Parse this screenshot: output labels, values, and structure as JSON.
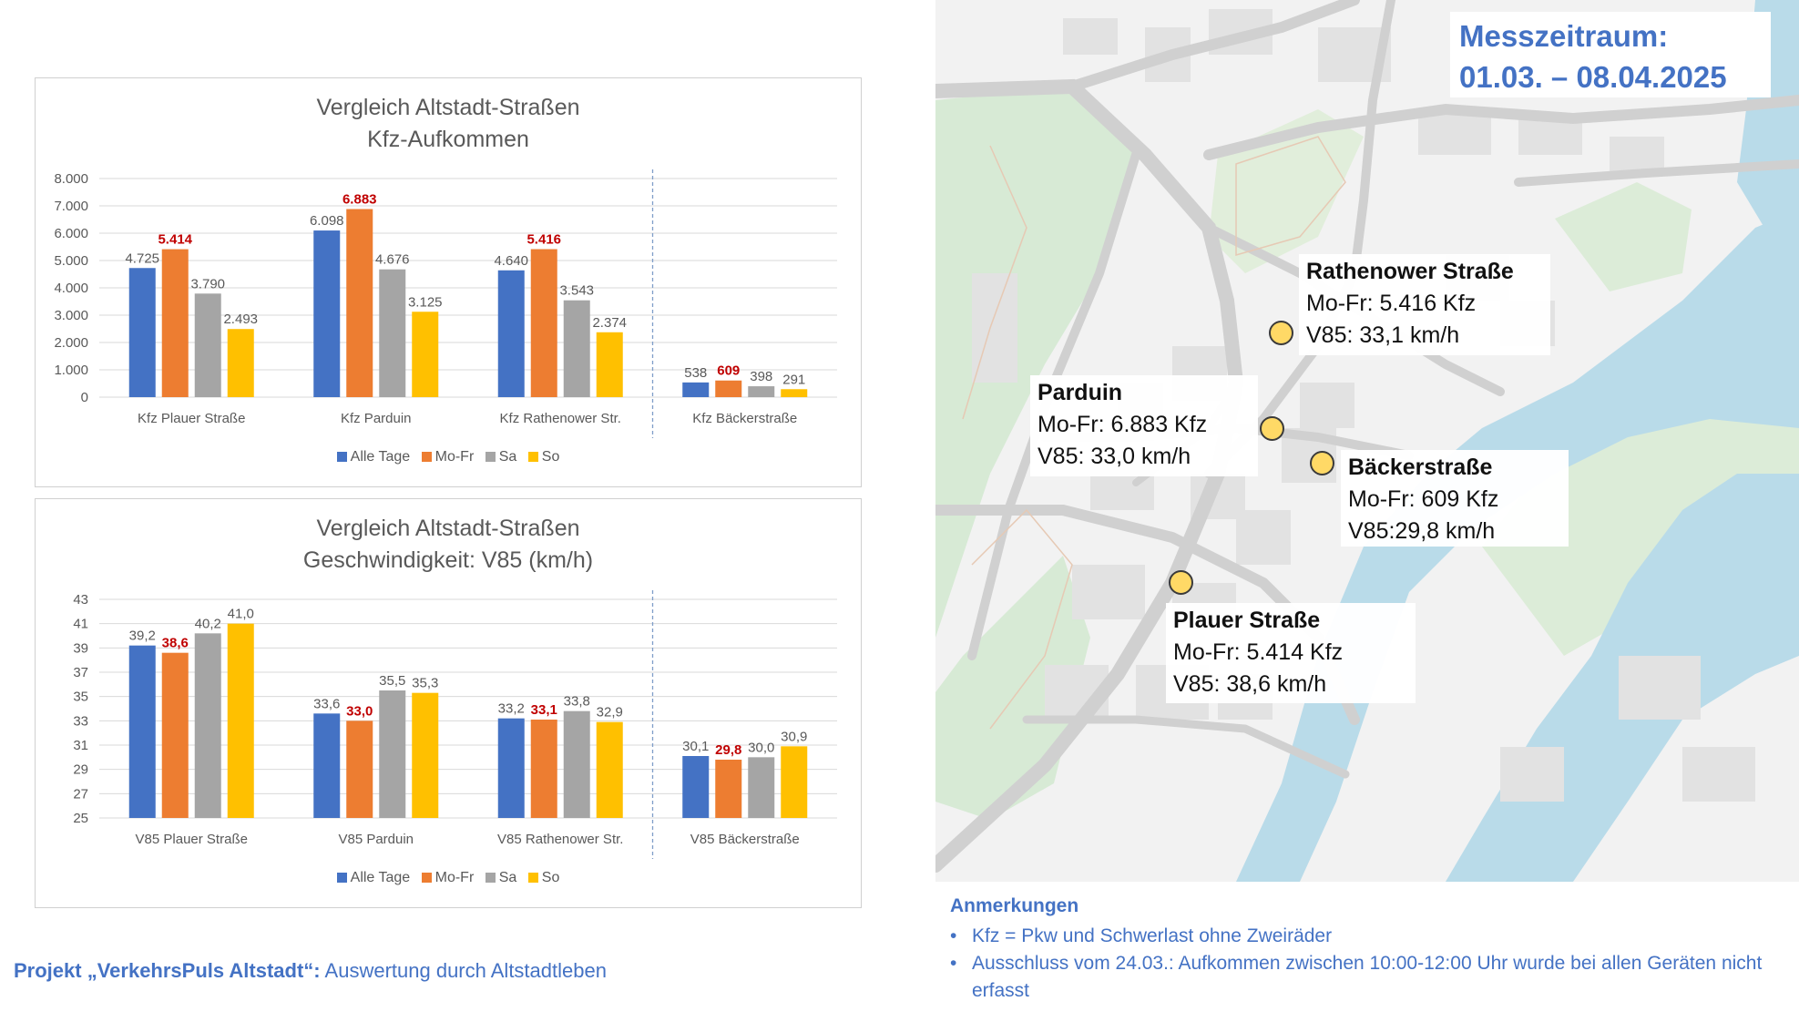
{
  "chart_data": [
    {
      "type": "bar",
      "title": [
        "Vergleich Altstadt-Straßen",
        "Kfz-Aufkommen"
      ],
      "categories": [
        "Kfz Plauer Straße",
        "Kfz Parduin",
        "Kfz Rathenower Str.",
        "Kfz Bäckerstraße"
      ],
      "series": [
        {
          "name": "Alle Tage",
          "color": "#4472c4",
          "values": [
            4725,
            6098,
            4640,
            538
          ],
          "labels": [
            "4.725",
            "6.098",
            "4.640",
            "538"
          ]
        },
        {
          "name": "Mo-Fr",
          "color": "#ed7d31",
          "values": [
            5414,
            6883,
            5416,
            609
          ],
          "labels": [
            "5.414",
            "6.883",
            "5.416",
            "609"
          ],
          "highlight": true
        },
        {
          "name": "Sa",
          "color": "#a5a5a5",
          "values": [
            3790,
            4676,
            3543,
            398
          ],
          "labels": [
            "3.790",
            "4.676",
            "3.543",
            "398"
          ]
        },
        {
          "name": "So",
          "color": "#ffc000",
          "values": [
            2493,
            3125,
            2374,
            291
          ],
          "labels": [
            "2.493",
            "3.125",
            "2.374",
            "291"
          ]
        }
      ],
      "yticks": [
        "8.000",
        "7.000",
        "6.000",
        "5.000",
        "4.000",
        "3.000",
        "2.000",
        "1.000",
        "0"
      ],
      "ylim": [
        0,
        8000
      ],
      "highlight_color": "#c00000",
      "separator": "dashed line before Kfz Bäckerstraße",
      "legend": "bottom",
      "grid": true
    },
    {
      "type": "bar",
      "title": [
        "Vergleich Altstadt-Straßen",
        "Geschwindigkeit: V85 (km/h)"
      ],
      "categories": [
        "V85 Plauer Straße",
        "V85 Parduin",
        "V85 Rathenower Str.",
        "V85 Bäckerstraße"
      ],
      "series": [
        {
          "name": "Alle Tage",
          "color": "#4472c4",
          "values": [
            39.2,
            33.6,
            33.2,
            30.1
          ],
          "labels": [
            "39,2",
            "33,6",
            "33,2",
            "30,1"
          ]
        },
        {
          "name": "Mo-Fr",
          "color": "#ed7d31",
          "values": [
            38.6,
            33.0,
            33.1,
            29.8
          ],
          "labels": [
            "38,6",
            "33,0",
            "33,1",
            "29,8"
          ],
          "highlight": true
        },
        {
          "name": "Sa",
          "color": "#a5a5a5",
          "values": [
            40.2,
            35.5,
            33.8,
            30.0
          ],
          "labels": [
            "40,2",
            "35,5",
            "33,8",
            "30,0"
          ]
        },
        {
          "name": "So",
          "color": "#ffc000",
          "values": [
            41.0,
            35.3,
            32.9,
            30.9
          ],
          "labels": [
            "41,0",
            "35,3",
            "32,9",
            "30,9"
          ]
        }
      ],
      "yticks": [
        "43",
        "41",
        "39",
        "37",
        "35",
        "33",
        "31",
        "29",
        "27",
        "25"
      ],
      "ylim": [
        25,
        43
      ],
      "highlight_color": "#c00000",
      "separator": "dashed line before V85 Bäckerstraße",
      "legend": "bottom",
      "grid": true
    }
  ],
  "footer": {
    "project_bold": "Projekt „VerkehrsPuls Altstadt“:",
    "project_text": " Auswertung durch Altstadtleben"
  },
  "map": {
    "period_line1": "Messzeitraum:",
    "period_line2": "01.03. – 08.04.2025",
    "locations": [
      {
        "name": "Rathenower Straße",
        "line1": "Mo-Fr: 5.416 Kfz",
        "line2": "V85: 33,1 km/h"
      },
      {
        "name": "Parduin",
        "line1": "Mo-Fr: 6.883 Kfz",
        "line2": "V85: 33,0 km/h"
      },
      {
        "name": "Bäckerstraße",
        "line1": "Mo-Fr: 609 Kfz",
        "line2": "V85:29,8 km/h"
      },
      {
        "name": "Plauer Straße",
        "line1": "Mo-Fr: 5.414 Kfz",
        "line2": "V85: 38,6 km/h"
      }
    ],
    "colors": {
      "water": "#b9dbe9",
      "park": "#d7ead5",
      "road": "#d6d6d6",
      "marker": "#ffd966"
    }
  },
  "notes": {
    "heading": "Anmerkungen",
    "items": [
      "Kfz = Pkw und Schwerlast ohne Zweiräder",
      "Ausschluss vom 24.03.: Aufkommen zwischen 10:00-12:00 Uhr wurde bei allen Geräten nicht erfasst"
    ]
  }
}
